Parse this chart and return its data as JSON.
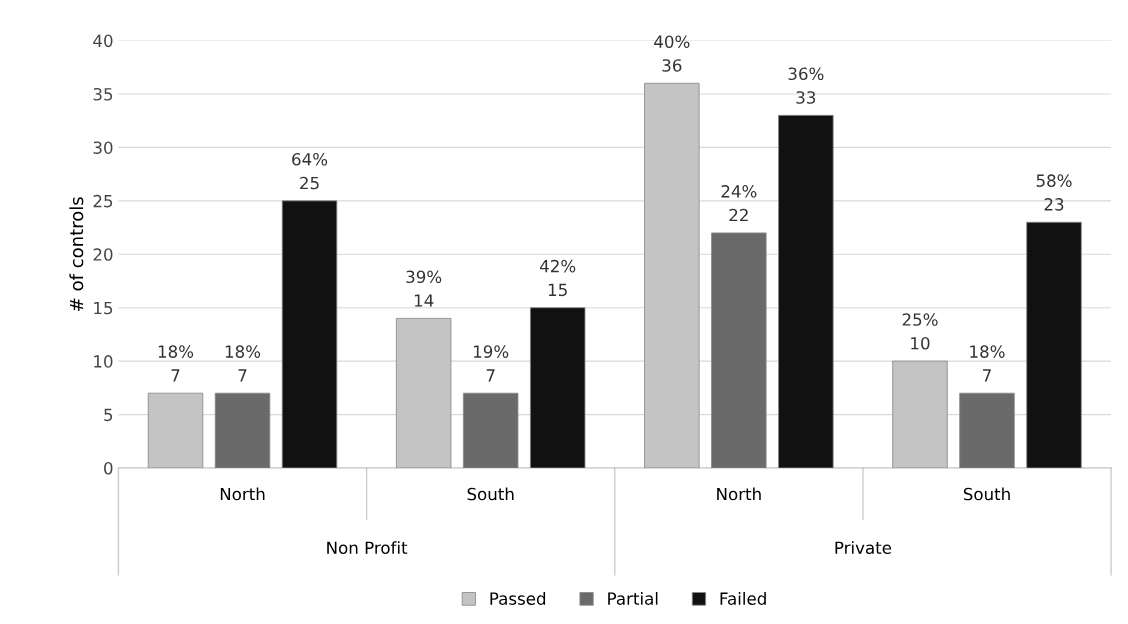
{
  "chart_data": {
    "type": "bar",
    "ylabel": "# of controls",
    "categories": [
      "North",
      "South",
      "North",
      "South"
    ],
    "annotations": [
      "Non Profit",
      "Private"
    ],
    "series": [
      {
        "name": "Passed",
        "color": "#c4c4c4",
        "values": [
          7,
          14,
          36,
          10
        ],
        "value_labels": [
          "18%\n7",
          "39%\n14",
          "40%\n36",
          "25%\n10"
        ]
      },
      {
        "name": "Partial",
        "color": "#6a6a6a",
        "values": [
          7,
          7,
          22,
          7
        ],
        "value_labels": [
          "18%\n7",
          "19%\n7",
          "24%\n22",
          "18%\n7"
        ]
      },
      {
        "name": "Failed",
        "color": "#111111",
        "values": [
          25,
          15,
          33,
          23
        ],
        "value_labels": [
          "64%\n25",
          "42%\n15",
          "36%\n33",
          "58%\n23"
        ]
      }
    ],
    "ylim": [
      0,
      40
    ],
    "yticks": [
      0,
      5,
      10,
      15,
      20,
      25,
      30,
      35,
      40
    ],
    "grid": "y",
    "legend": "bottom"
  }
}
